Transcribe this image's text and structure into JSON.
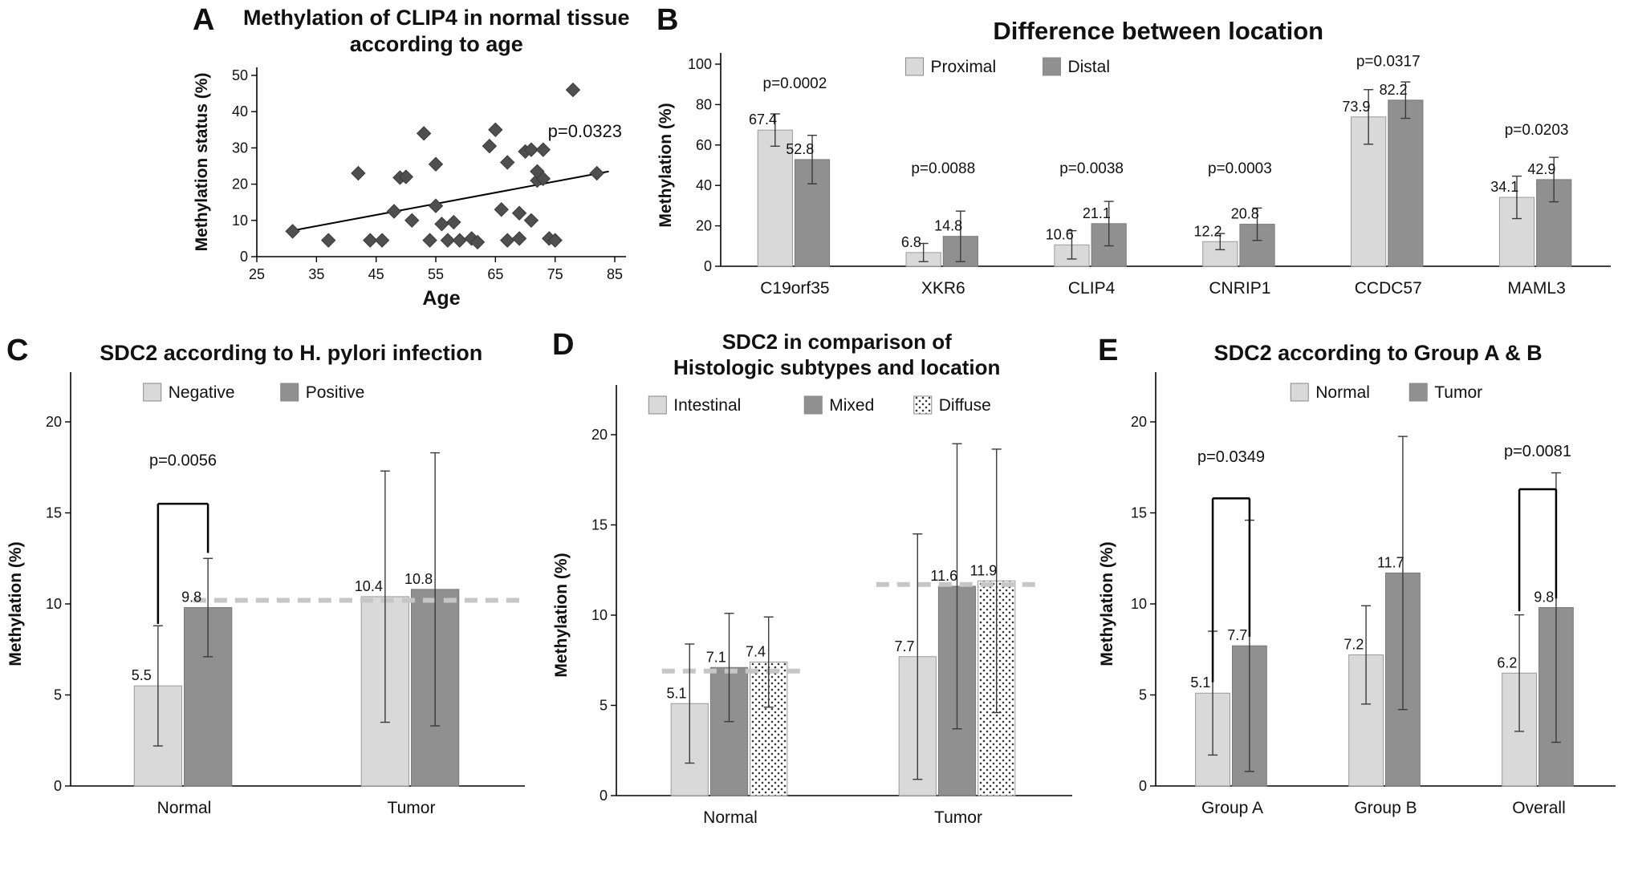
{
  "colors": {
    "light": "#d9d9d9",
    "dark": "#909090",
    "marker": "#4f4f4f",
    "error": "#3a3a3a",
    "dash": "#c6c6c6",
    "axis": "#000000"
  },
  "chart_data": [
    {
      "type": "scatter",
      "panel_label": "A",
      "title_lines": [
        "Methylation of CLIP4 in normal tissue",
        "according to age"
      ],
      "xlabel": "Age",
      "ylabel": "Methylation status (%)",
      "xlim": [
        25,
        85
      ],
      "ylim": [
        0,
        50
      ],
      "xticks": [
        25,
        35,
        45,
        55,
        65,
        75,
        85
      ],
      "yticks": [
        0,
        10,
        20,
        30,
        40,
        50
      ],
      "points": [
        [
          31,
          7
        ],
        [
          37,
          4.5
        ],
        [
          42,
          23
        ],
        [
          44,
          4.5
        ],
        [
          46,
          4.5
        ],
        [
          48,
          12.5
        ],
        [
          49,
          21.8
        ],
        [
          50,
          22
        ],
        [
          51,
          10
        ],
        [
          53,
          34
        ],
        [
          54,
          4.5
        ],
        [
          55,
          25.5
        ],
        [
          55,
          14
        ],
        [
          56,
          9
        ],
        [
          57,
          4.5
        ],
        [
          58,
          9.5
        ],
        [
          59,
          4.5
        ],
        [
          61,
          5
        ],
        [
          62,
          4
        ],
        [
          64,
          30.5
        ],
        [
          65,
          35
        ],
        [
          66,
          13
        ],
        [
          67,
          26
        ],
        [
          67,
          4.5
        ],
        [
          69,
          12
        ],
        [
          69,
          5
        ],
        [
          70,
          29
        ],
        [
          71,
          29.5
        ],
        [
          71,
          10
        ],
        [
          72,
          21
        ],
        [
          72,
          23.5
        ],
        [
          73,
          29.5
        ],
        [
          73,
          21.5
        ],
        [
          74,
          5
        ],
        [
          75,
          4.5
        ],
        [
          78,
          46
        ],
        [
          82,
          23
        ]
      ],
      "trend": [
        [
          31,
          7.2
        ],
        [
          84,
          23.5
        ]
      ],
      "annotation": {
        "text": "p=0.0323",
        "x": 80,
        "y": 33
      }
    },
    {
      "type": "bar",
      "panel_label": "B",
      "title_lines": [
        "Difference between location"
      ],
      "ylabel": "Methylation (%)",
      "ylim": [
        0,
        100
      ],
      "ytick_step": 20,
      "categories": [
        "C19orf35",
        "XKR6",
        "CLIP4",
        "CNRIP1",
        "CCDC57",
        "MAML3"
      ],
      "series": [
        {
          "name": "Proximal",
          "fill": "light",
          "values": [
            67.4,
            6.8,
            10.6,
            12.2,
            73.9,
            34.1
          ],
          "errors": [
            8,
            4.5,
            7,
            4,
            13.5,
            10.5
          ]
        },
        {
          "name": "Distal",
          "fill": "dark",
          "values": [
            52.8,
            14.8,
            21.1,
            20.8,
            82.2,
            42.9
          ],
          "errors": [
            12,
            12.5,
            11,
            8,
            9,
            11
          ]
        }
      ],
      "p_annotations": [
        {
          "text": "p=0.0002",
          "cat": 0,
          "y": 88
        },
        {
          "text": "p=0.0088",
          "cat": 1,
          "y": 46
        },
        {
          "text": "p=0.0038",
          "cat": 2,
          "y": 46
        },
        {
          "text": "p=0.0003",
          "cat": 3,
          "y": 46
        },
        {
          "text": "p=0.0317",
          "cat": 4,
          "y": 99
        },
        {
          "text": "p=0.0203",
          "cat": 5,
          "y": 65
        }
      ],
      "legend": true
    },
    {
      "type": "bar",
      "panel_label": "C",
      "title_lines": [
        "SDC2 according to H. pylori infection"
      ],
      "ylabel": "Methylation (%)",
      "ylim": [
        0,
        20
      ],
      "ytick_step": 5,
      "categories": [
        "Normal",
        "Tumor"
      ],
      "series": [
        {
          "name": "Negative",
          "fill": "light",
          "values": [
            5.5,
            10.4
          ],
          "errors": [
            3.3,
            6.9
          ]
        },
        {
          "name": "Positive",
          "fill": "dark",
          "values": [
            9.8,
            10.8
          ],
          "errors": [
            2.7,
            7.5
          ]
        }
      ],
      "dashed": [
        {
          "y": 10.2,
          "x1f": 0.27,
          "x2f": 0.99
        }
      ],
      "brackets": [
        {
          "text": "p=0.0056",
          "cat": 0,
          "s": [
            0,
            1
          ],
          "y": 15.5,
          "drops": [
            8.9,
            12.8
          ],
          "text_y": 17.6
        }
      ],
      "legend": true
    },
    {
      "type": "bar",
      "panel_label": "D",
      "title_lines": [
        "SDC2 in comparison of",
        "Histologic subtypes and location"
      ],
      "ylabel": "Methylation (%)",
      "ylim": [
        0,
        20
      ],
      "ytick_step": 5,
      "categories": [
        "Normal",
        "Tumor"
      ],
      "series": [
        {
          "name": "Intestinal",
          "fill": "light",
          "values": [
            5.1,
            7.7
          ],
          "errors": [
            3.3,
            6.8
          ]
        },
        {
          "name": "Mixed",
          "fill": "dark",
          "values": [
            7.1,
            11.6
          ],
          "errors": [
            3.0,
            7.9
          ]
        },
        {
          "name": "Diffuse",
          "fill": "dots",
          "values": [
            7.4,
            11.9
          ],
          "errors": [
            2.5,
            7.3
          ]
        }
      ],
      "dashed": [
        {
          "y": 6.9,
          "x1f": 0.1,
          "x2f": 0.42
        },
        {
          "y": 11.7,
          "x1f": 0.57,
          "x2f": 0.93
        }
      ],
      "legend": true
    },
    {
      "type": "bar",
      "panel_label": "E",
      "title_lines": [
        "SDC2 according to Group A & B"
      ],
      "ylabel": "Methylation (%)",
      "ylim": [
        0,
        20
      ],
      "ytick_step": 5,
      "categories": [
        "Group A",
        "Group B",
        "Overall"
      ],
      "series": [
        {
          "name": "Normal",
          "fill": "light",
          "values": [
            5.1,
            7.2,
            6.2
          ],
          "errors": [
            3.4,
            2.7,
            3.2
          ]
        },
        {
          "name": "Tumor",
          "fill": "dark",
          "values": [
            7.7,
            11.7,
            9.8
          ],
          "errors": [
            6.9,
            7.5,
            7.4
          ]
        }
      ],
      "brackets": [
        {
          "text": "p=0.0349",
          "cat": 0,
          "s": [
            0,
            1
          ],
          "y": 15.8,
          "drops": [
            5.7,
            8.2
          ],
          "text_y": 17.8
        },
        {
          "text": "p=0.0081",
          "cat": 2,
          "s": [
            0,
            1
          ],
          "y": 16.3,
          "drops": [
            9.6,
            10.3
          ],
          "text_y": 18.1
        }
      ],
      "legend": true
    }
  ]
}
